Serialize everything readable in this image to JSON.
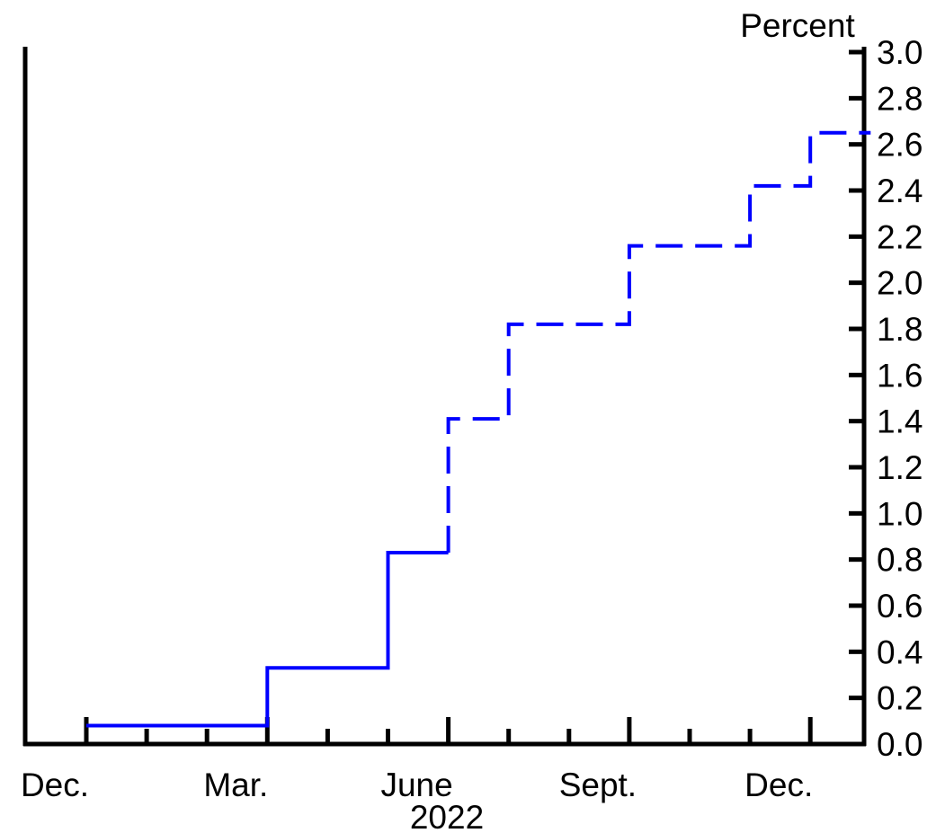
{
  "chart_data": {
    "type": "line",
    "y_unit_label": "Percent",
    "y_ticks": [
      "0.0",
      "0.2",
      "0.4",
      "0.6",
      "0.8",
      "1.0",
      "1.2",
      "1.4",
      "1.6",
      "1.8",
      "2.0",
      "2.2",
      "2.4",
      "2.6",
      "2.8",
      "3.0"
    ],
    "ylim": [
      0,
      3.0
    ],
    "x_tick_labels": [
      "Dec.",
      "Mar.",
      "June",
      "Sept.",
      "Dec."
    ],
    "x_year_label": "2022",
    "line_color": "#0000ff",
    "series": [
      {
        "style": "step",
        "points": [
          {
            "x": "Dec.",
            "y": 0.08
          },
          {
            "x": "Mar.",
            "y": 0.08
          },
          {
            "x": "Mar.",
            "y": 0.33
          },
          {
            "x": "May",
            "y": 0.33
          },
          {
            "x": "May",
            "y": 0.83
          },
          {
            "x": "June",
            "y": 0.83
          }
        ]
      },
      {
        "style": "dashed-step",
        "points": [
          {
            "x": "June",
            "y": 0.83
          },
          {
            "x": "June",
            "y": 1.41
          },
          {
            "x": "July",
            "y": 1.41
          },
          {
            "x": "July",
            "y": 1.82
          },
          {
            "x": "Sept.",
            "y": 1.82
          },
          {
            "x": "Sept.",
            "y": 2.16
          },
          {
            "x": "Nov.",
            "y": 2.16
          },
          {
            "x": "Nov.",
            "y": 2.42
          },
          {
            "x": "Dec.",
            "y": 2.42
          },
          {
            "x": "Dec.",
            "y": 2.65
          },
          {
            "x": "Jan.",
            "y": 2.65
          }
        ]
      }
    ],
    "grid": false
  }
}
